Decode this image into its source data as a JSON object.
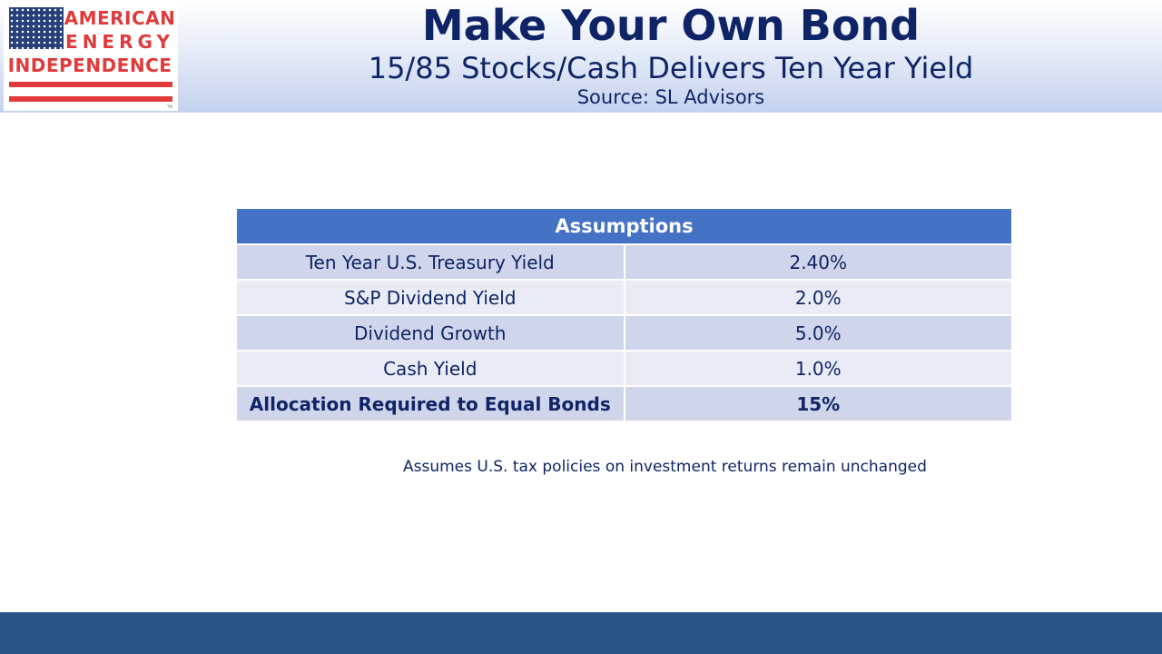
{
  "logo": {
    "line1": "AMERICAN",
    "line2": "ENERGY",
    "line3": "INDEPENDENCE",
    "trademark": "TM",
    "colors": {
      "red": "#e03a3a",
      "blue": "#27407a"
    }
  },
  "header": {
    "title": "Make Your Own Bond",
    "subtitle": "15/85 Stocks/Cash Delivers Ten Year Yield",
    "source": "Source: SL Advisors"
  },
  "table": {
    "heading": "Assumptions",
    "rows": [
      {
        "label": "Ten Year U.S. Treasury Yield",
        "value": "2.40%"
      },
      {
        "label": "S&P Dividend Yield",
        "value": "2.0%"
      },
      {
        "label": "Dividend Growth",
        "value": "5.0%"
      },
      {
        "label": "Cash Yield",
        "value": "1.0%"
      },
      {
        "label": "Allocation Required to Equal Bonds",
        "value": "15%"
      }
    ],
    "colors": {
      "header": "#4472c4",
      "row_dark": "#cfd5ea",
      "row_light": "#e9ebf5",
      "text": "#0f2466"
    }
  },
  "footnote": "Assumes U.S. tax policies on investment returns remain unchanged",
  "footer": {
    "color": "#2a5587"
  }
}
